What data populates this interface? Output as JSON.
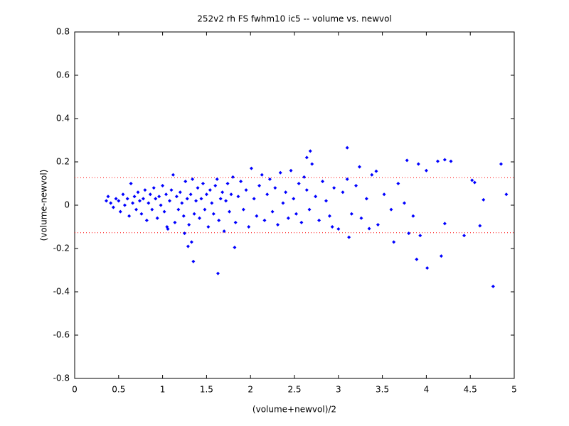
{
  "chart_data": {
    "type": "scatter",
    "title": "252v2 rh FS fwhm10 ic5 -- volume vs. newvol",
    "xlabel": "(volume+newvol)/2",
    "ylabel": "(volume-newvol)",
    "color": "#0000ff",
    "x": [
      0.36,
      0.38,
      0.41,
      0.44,
      0.47,
      0.5,
      0.52,
      0.55,
      0.57,
      0.6,
      0.62,
      0.64,
      0.66,
      0.68,
      0.7,
      0.72,
      0.74,
      0.76,
      0.78,
      0.8,
      0.82,
      0.84,
      0.86,
      0.88,
      0.9,
      0.92,
      0.94,
      0.96,
      0.98,
      1.0,
      1.02,
      1.04,
      1.06,
      1.08,
      1.1,
      1.12,
      1.14,
      1.16,
      1.18,
      1.2,
      1.22,
      1.24,
      1.26,
      1.28,
      1.3,
      1.32,
      1.34,
      1.36,
      1.38,
      1.4,
      1.42,
      1.44,
      1.46,
      1.48,
      1.5,
      1.52,
      1.54,
      1.56,
      1.58,
      1.6,
      1.62,
      1.64,
      1.66,
      1.68,
      1.7,
      1.72,
      1.74,
      1.76,
      1.78,
      1.8,
      1.83,
      1.86,
      1.89,
      1.92,
      1.95,
      1.98,
      2.01,
      2.04,
      2.07,
      2.1,
      2.13,
      2.16,
      2.19,
      2.22,
      2.25,
      2.28,
      2.31,
      2.34,
      2.37,
      2.4,
      2.43,
      2.46,
      2.49,
      2.52,
      2.55,
      2.58,
      2.61,
      2.64,
      2.67,
      2.7,
      2.74,
      2.78,
      2.82,
      2.86,
      2.9,
      2.95,
      3.0,
      3.05,
      3.1,
      3.15,
      3.2,
      3.26,
      3.32,
      3.38,
      3.45,
      3.52,
      3.6,
      3.68,
      3.75,
      3.85,
      2.68,
      2.64,
      3.1,
      3.78,
      4.13,
      4.21,
      4.28,
      4.85,
      4.91,
      4.0,
      3.91,
      3.43,
      3.24,
      1.35,
      1.63,
      1.29,
      1.82,
      3.89,
      4.01,
      4.17,
      4.76,
      4.43,
      4.21,
      3.93,
      3.63,
      3.8,
      4.65,
      4.61,
      4.55,
      4.52,
      3.12,
      3.35,
      2.93,
      1.33,
      1.05,
      1.25
    ],
    "values": [
      0.02,
      0.04,
      0.01,
      -0.01,
      0.03,
      0.02,
      -0.03,
      0.05,
      0.0,
      0.03,
      -0.05,
      0.1,
      0.01,
      0.04,
      -0.02,
      0.06,
      0.02,
      -0.04,
      0.03,
      0.07,
      -0.07,
      0.01,
      0.05,
      -0.02,
      0.08,
      0.03,
      -0.06,
      0.04,
      0.0,
      0.09,
      -0.03,
      0.05,
      -0.11,
      0.02,
      0.07,
      0.14,
      -0.08,
      0.04,
      -0.02,
      0.06,
      0.01,
      -0.05,
      0.11,
      0.03,
      -0.09,
      0.05,
      0.12,
      -0.04,
      0.02,
      0.08,
      -0.06,
      0.03,
      0.1,
      -0.02,
      0.05,
      -0.1,
      0.07,
      0.01,
      -0.04,
      0.09,
      0.12,
      -0.07,
      0.03,
      0.06,
      -0.12,
      0.02,
      0.1,
      -0.03,
      0.05,
      0.13,
      -0.08,
      0.04,
      0.11,
      -0.02,
      0.07,
      -0.1,
      0.17,
      0.03,
      -0.05,
      0.09,
      0.14,
      -0.07,
      0.05,
      0.12,
      -0.03,
      0.08,
      -0.09,
      0.15,
      0.01,
      0.06,
      -0.06,
      0.16,
      0.03,
      -0.04,
      0.1,
      -0.08,
      0.13,
      0.07,
      -0.02,
      0.19,
      0.04,
      -0.07,
      0.11,
      0.02,
      -0.05,
      0.08,
      -0.11,
      0.06,
      0.12,
      -0.04,
      0.09,
      -0.06,
      0.03,
      0.14,
      -0.09,
      0.05,
      -0.02,
      0.1,
      0.01,
      -0.05,
      0.25,
      0.22,
      0.265,
      0.207,
      0.203,
      0.21,
      0.203,
      0.19,
      0.05,
      0.16,
      0.19,
      0.157,
      0.177,
      -0.26,
      -0.315,
      -0.19,
      -0.195,
      -0.25,
      -0.29,
      -0.235,
      -0.375,
      -0.14,
      -0.085,
      -0.14,
      -0.17,
      -0.13,
      0.025,
      -0.095,
      0.105,
      0.115,
      -0.148,
      -0.108,
      -0.1,
      -0.17,
      -0.1,
      -0.13
    ],
    "hlines": [
      0.127,
      -0.127
    ],
    "hline_color": "#ff0000",
    "xlim": [
      0,
      5
    ],
    "xticks": [
      0,
      0.5,
      1,
      1.5,
      2,
      2.5,
      3,
      3.5,
      4,
      4.5,
      5
    ],
    "ylim": [
      -0.8,
      0.8
    ],
    "yticks": [
      -0.8,
      -0.6,
      -0.4,
      -0.2,
      0,
      0.2,
      0.4,
      0.6,
      0.8
    ],
    "grid": false
  }
}
